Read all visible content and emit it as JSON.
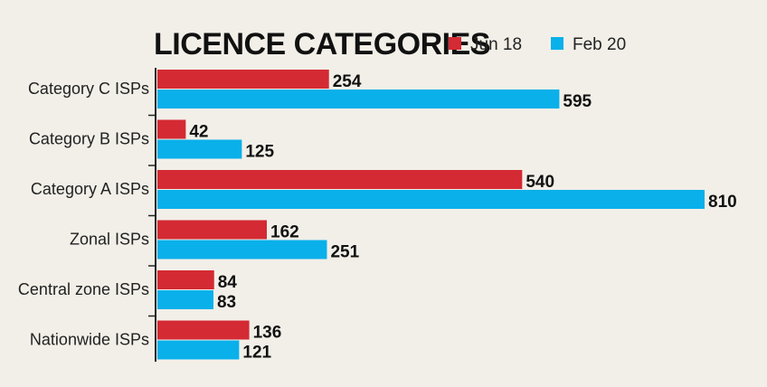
{
  "chart_data": {
    "type": "bar",
    "orientation": "horizontal",
    "title": "LICENCE CATEGORIES",
    "categories": [
      "Category C ISPs",
      "Category B ISPs",
      "Category A ISPs",
      "Zonal ISPs",
      "Central zone ISPs",
      "Nationwide ISPs"
    ],
    "series": [
      {
        "name": "Jun 18",
        "values": [
          254,
          42,
          540,
          162,
          84,
          136
        ],
        "color": "#d42a33"
      },
      {
        "name": "Feb 20",
        "values": [
          595,
          125,
          810,
          251,
          83,
          121
        ],
        "color": "#0ab0ea"
      }
    ],
    "xlim": [
      0,
      810
    ],
    "grid": false,
    "legend_position": "top-right"
  }
}
